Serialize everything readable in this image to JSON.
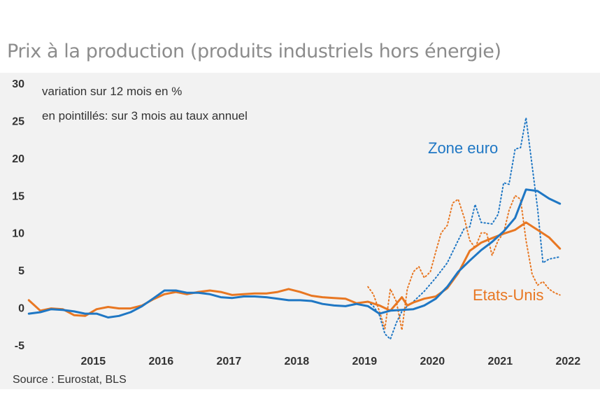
{
  "title": "Prix à la production (produits industriels hors énergie)",
  "source": "Source : Eurostat, BLS",
  "notes": [
    "variation sur 12 mois en %",
    "en pointillés: sur 3 mois au taux annuel"
  ],
  "colors": {
    "euro": "#1f77c4",
    "us": "#e87722",
    "background": "#f2f2f2",
    "title": "#8c8c8c"
  },
  "chart_data": {
    "type": "line",
    "title": "Prix à la production (produits industriels hors énergie)",
    "xlabel": "",
    "ylabel": "",
    "ylim": [
      -5,
      30
    ],
    "yticks": [
      -5,
      0,
      5,
      10,
      15,
      20,
      25,
      30
    ],
    "xlim": [
      2014.55,
      2022.55
    ],
    "xticks": [
      {
        "label": "2015",
        "value": 2015.0
      },
      {
        "label": "2016",
        "value": 2016.0
      },
      {
        "label": "2017",
        "value": 2017.0
      },
      {
        "label": "2018",
        "value": 2018.0
      },
      {
        "label": "2019",
        "value": 2019.0
      },
      {
        "label": "2020",
        "value": 2020.0
      },
      {
        "label": "2021",
        "value": 2021.0
      },
      {
        "label": "2022",
        "value": 2022.0
      }
    ],
    "series": [
      {
        "name": "Zone euro",
        "style": "solid",
        "color": "#1f77c4",
        "x": [
          2014.5,
          2014.67,
          2014.83,
          2015.0,
          2015.17,
          2015.33,
          2015.5,
          2015.67,
          2015.83,
          2016.0,
          2016.17,
          2016.33,
          2016.5,
          2016.67,
          2016.83,
          2017.0,
          2017.17,
          2017.33,
          2017.5,
          2017.67,
          2017.83,
          2018.0,
          2018.17,
          2018.33,
          2018.5,
          2018.67,
          2018.83,
          2019.0,
          2019.17,
          2019.33,
          2019.5,
          2019.67,
          2019.83,
          2020.0,
          2020.17,
          2020.33,
          2020.5,
          2020.67,
          2020.83,
          2021.0,
          2021.17,
          2021.33,
          2021.5,
          2021.67,
          2021.83,
          2022.0,
          2022.17,
          2022.33
        ],
        "values": [
          -0.8,
          -0.6,
          -0.2,
          -0.3,
          -0.5,
          -0.8,
          -0.8,
          -1.3,
          -1.1,
          -0.6,
          0.2,
          1.2,
          2.3,
          2.3,
          2.0,
          2.0,
          1.8,
          1.4,
          1.3,
          1.5,
          1.5,
          1.4,
          1.2,
          1.0,
          1.0,
          0.9,
          0.5,
          0.3,
          0.2,
          0.5,
          0.2,
          -0.8,
          -0.4,
          -0.3,
          -0.2,
          0.3,
          1.2,
          2.8,
          4.8,
          6.3,
          7.7,
          8.8,
          10.2,
          12.0,
          15.8,
          15.6,
          14.6,
          13.9
        ]
      },
      {
        "name": "Etats-Unis",
        "style": "solid",
        "color": "#e87722",
        "x": [
          2014.5,
          2014.67,
          2014.83,
          2015.0,
          2015.17,
          2015.33,
          2015.5,
          2015.67,
          2015.83,
          2016.0,
          2016.17,
          2016.33,
          2016.5,
          2016.67,
          2016.83,
          2017.0,
          2017.17,
          2017.33,
          2017.5,
          2017.67,
          2017.83,
          2018.0,
          2018.17,
          2018.33,
          2018.5,
          2018.67,
          2018.83,
          2019.0,
          2019.17,
          2019.33,
          2019.5,
          2019.67,
          2019.83,
          2020.0,
          2020.08,
          2020.17,
          2020.33,
          2020.5,
          2020.67,
          2020.83,
          2021.0,
          2021.17,
          2021.33,
          2021.5,
          2021.67,
          2021.83,
          2022.0,
          2022.17,
          2022.33
        ],
        "values": [
          1.0,
          -0.4,
          -0.1,
          -0.2,
          -1.0,
          -1.1,
          -0.2,
          0.1,
          -0.1,
          -0.1,
          0.3,
          1.1,
          1.8,
          2.1,
          1.8,
          2.1,
          2.3,
          2.1,
          1.7,
          1.8,
          1.9,
          1.9,
          2.1,
          2.5,
          2.1,
          1.6,
          1.4,
          1.3,
          1.2,
          0.6,
          0.8,
          0.3,
          -0.4,
          1.4,
          0.3,
          0.7,
          1.2,
          1.5,
          2.6,
          4.6,
          7.6,
          8.7,
          9.3,
          9.9,
          10.4,
          11.4,
          10.4,
          9.4,
          7.9
        ]
      },
      {
        "name": "Zone euro (3 mois, taux annuel)",
        "style": "dotted",
        "color": "#1f77c4",
        "x": [
          2019.5,
          2019.58,
          2019.67,
          2019.75,
          2019.83,
          2019.92,
          2020.0,
          2020.08,
          2020.17,
          2020.33,
          2020.5,
          2020.67,
          2020.83,
          2020.92,
          2021.0,
          2021.08,
          2021.17,
          2021.25,
          2021.33,
          2021.42,
          2021.5,
          2021.58,
          2021.67,
          2021.75,
          2021.83,
          2021.92,
          2022.0,
          2022.08,
          2022.17,
          2022.33
        ],
        "values": [
          0.8,
          0.2,
          -1.0,
          -3.5,
          -4.2,
          -2.0,
          -0.5,
          0.2,
          0.8,
          2.2,
          4.0,
          6.0,
          9.0,
          10.6,
          10.8,
          13.8,
          11.4,
          11.3,
          11.2,
          12.5,
          16.7,
          16.5,
          21.2,
          21.4,
          25.4,
          19.0,
          13.3,
          6.0,
          6.5,
          6.8
        ]
      },
      {
        "name": "Etats-Unis (3 mois, taux annuel)",
        "style": "dotted",
        "color": "#e87722",
        "x": [
          2019.5,
          2019.58,
          2019.67,
          2019.75,
          2019.83,
          2019.92,
          2020.0,
          2020.08,
          2020.17,
          2020.25,
          2020.33,
          2020.42,
          2020.5,
          2020.58,
          2020.67,
          2020.75,
          2020.83,
          2020.92,
          2021.0,
          2021.08,
          2021.17,
          2021.25,
          2021.33,
          2021.42,
          2021.5,
          2021.58,
          2021.67,
          2021.75,
          2021.83,
          2021.92,
          2022.0,
          2022.08,
          2022.17,
          2022.25,
          2022.33
        ],
        "values": [
          2.8,
          1.8,
          -0.5,
          -2.8,
          2.5,
          0.8,
          -3.0,
          2.5,
          4.8,
          5.5,
          4.0,
          4.8,
          7.5,
          10.0,
          11.0,
          14.0,
          14.5,
          12.0,
          9.0,
          8.0,
          10.0,
          10.0,
          7.0,
          9.0,
          10.0,
          13.0,
          15.0,
          14.5,
          9.0,
          4.5,
          3.0,
          3.5,
          2.5,
          2.0,
          1.7
        ]
      }
    ],
    "annotations": [
      {
        "text": "Zone euro",
        "series": "Zone euro",
        "x": 2021.1,
        "y": 21.2
      },
      {
        "text": "Etats-Unis",
        "series": "Etats-Unis",
        "x": 2021.3,
        "y": 1.1
      }
    ]
  }
}
